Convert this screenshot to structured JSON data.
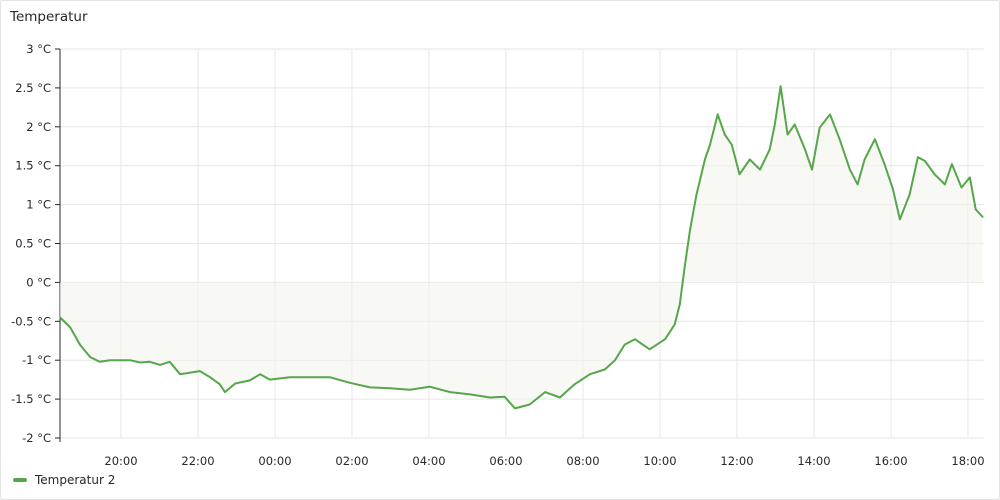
{
  "panel": {
    "title": "Temperatur"
  },
  "chart_data": {
    "type": "line",
    "title": "Temperatur",
    "xlabel": "",
    "ylabel": "",
    "x_range": [
      "18:25",
      "18:25"
    ],
    "ylim": [
      -2,
      3
    ],
    "y_ticks": [
      "-2 °C",
      "-1.5 °C",
      "-1 °C",
      "-0.5 °C",
      "0 °C",
      "0.5 °C",
      "1 °C",
      "1.5 °C",
      "2 °C",
      "2.5 °C",
      "3 °C"
    ],
    "y_tick_values": [
      -2,
      -1.5,
      -1,
      -0.5,
      0,
      0.5,
      1,
      1.5,
      2,
      2.5,
      3
    ],
    "x_ticks": [
      "20:00",
      "22:00",
      "00:00",
      "02:00",
      "04:00",
      "06:00",
      "08:00",
      "10:00",
      "12:00",
      "14:00",
      "16:00",
      "18:00"
    ],
    "grid": true,
    "legend_position": "bottom-left",
    "fill": "area-to-zero",
    "series": [
      {
        "name": "Temperatur 2",
        "color": "#56a64b",
        "x": [
          "18:25",
          "18:41",
          "18:56",
          "19:12",
          "19:27",
          "19:43",
          "19:58",
          "20:14",
          "20:30",
          "20:45",
          "21:01",
          "21:16",
          "21:32",
          "21:48",
          "22:03",
          "22:19",
          "22:34",
          "22:42",
          "22:58",
          "23:21",
          "23:37",
          "23:52",
          "00:23",
          "00:55",
          "01:26",
          "01:57",
          "02:28",
          "02:59",
          "03:30",
          "04:01",
          "04:33",
          "05:04",
          "05:35",
          "05:58",
          "06:14",
          "06:37",
          "07:01",
          "07:24",
          "07:47",
          "08:11",
          "08:34",
          "08:50",
          "09:05",
          "09:21",
          "09:44",
          "10:08",
          "10:23",
          "10:31",
          "10:39",
          "10:47",
          "10:57",
          "11:10",
          "11:18",
          "11:30",
          "11:41",
          "11:52",
          "12:04",
          "12:20",
          "12:36",
          "12:51",
          "12:59",
          "13:08",
          "13:19",
          "13:30",
          "13:46",
          "13:57",
          "14:09",
          "14:25",
          "14:40",
          "14:56",
          "15:08",
          "15:19",
          "15:35",
          "15:50",
          "16:03",
          "16:14",
          "16:29",
          "16:42",
          "16:53",
          "17:08",
          "17:24",
          "17:35",
          "17:50",
          "18:03",
          "18:12",
          "18:23"
        ],
        "values": [
          -0.45,
          -0.58,
          -0.8,
          -0.96,
          -1.02,
          -1.0,
          -1.0,
          -1.0,
          -1.03,
          -1.02,
          -1.06,
          -1.02,
          -1.18,
          -1.16,
          -1.14,
          -1.22,
          -1.31,
          -1.41,
          -1.3,
          -1.26,
          -1.18,
          -1.25,
          -1.22,
          -1.22,
          -1.22,
          -1.29,
          -1.35,
          -1.36,
          -1.38,
          -1.34,
          -1.41,
          -1.44,
          -1.48,
          -1.47,
          -1.62,
          -1.57,
          -1.41,
          -1.48,
          -1.31,
          -1.18,
          -1.12,
          -1.0,
          -0.8,
          -0.73,
          -0.86,
          -0.73,
          -0.54,
          -0.28,
          0.23,
          0.68,
          1.13,
          1.58,
          1.77,
          2.16,
          1.9,
          1.77,
          1.39,
          1.58,
          1.45,
          1.71,
          2.03,
          2.52,
          1.9,
          2.03,
          1.71,
          1.45,
          1.99,
          2.16,
          1.84,
          1.45,
          1.26,
          1.58,
          1.84,
          1.52,
          1.2,
          0.81,
          1.13,
          1.61,
          1.56,
          1.39,
          1.26,
          1.52,
          1.22,
          1.35,
          0.94,
          0.84
        ]
      }
    ]
  }
}
